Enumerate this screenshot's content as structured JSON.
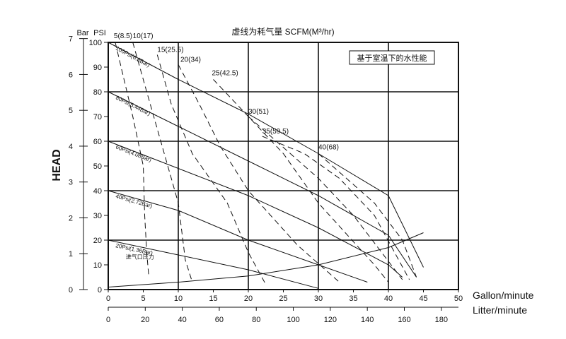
{
  "chart_data": {
    "type": "line",
    "title": "虚线为耗气量  SCFM(M³/hr)",
    "note": "基于室温下的水性能",
    "ylabel": "HEAD",
    "y_unit_bar": "Bar",
    "y_unit_psi": "PSI",
    "xlabel_gpm": "Gallon/minute",
    "xlabel_lpm": "Litter/minute",
    "xlim": [
      0,
      50
    ],
    "ylim_psi": [
      0,
      100
    ],
    "x_ticks_gpm": [
      "0",
      "5",
      "10",
      "15",
      "20",
      "25",
      "30",
      "35",
      "40",
      "45",
      "50"
    ],
    "x_ticks_lpm": [
      "0",
      "20",
      "40",
      "60",
      "80",
      "100",
      "120",
      "140",
      "160",
      "180"
    ],
    "y_ticks_psi": [
      "0",
      "10",
      "20",
      "30",
      "40",
      "50",
      "60",
      "70",
      "80",
      "90",
      "100"
    ],
    "y_ticks_bar": [
      "0",
      "1",
      "2",
      "3",
      "4",
      "5",
      "6",
      "7"
    ],
    "air_pressure_curves": [
      {
        "label": "100Psi(6.8Bar)",
        "points": [
          [
            0,
            100
          ],
          [
            10,
            85
          ],
          [
            20,
            71
          ],
          [
            30,
            55
          ],
          [
            40,
            38
          ],
          [
            45,
            9
          ]
        ]
      },
      {
        "label": "80Psi(5.44Bar)",
        "points": [
          [
            0,
            80
          ],
          [
            10,
            66
          ],
          [
            20,
            52
          ],
          [
            30,
            38
          ],
          [
            40,
            22
          ],
          [
            44,
            5
          ]
        ]
      },
      {
        "label": "60Psi(4.08Bar)",
        "points": [
          [
            0,
            60
          ],
          [
            10,
            49
          ],
          [
            20,
            38
          ],
          [
            30,
            25
          ],
          [
            40,
            10
          ],
          [
            42,
            5
          ]
        ]
      },
      {
        "label": "40Psi(2.72Bar)",
        "points": [
          [
            0,
            40
          ],
          [
            10,
            32
          ],
          [
            20,
            20
          ],
          [
            30,
            10
          ],
          [
            37,
            3
          ]
        ]
      },
      {
        "label": "20Psi(1.36Bar)",
        "points": [
          [
            0,
            20
          ],
          [
            10,
            14
          ],
          [
            20,
            8
          ],
          [
            30,
            0.5
          ]
        ]
      }
    ],
    "npsh_curve_label": "进气口压力",
    "npsh_curve": [
      [
        0,
        1
      ],
      [
        10,
        3
      ],
      [
        20,
        5.5
      ],
      [
        30,
        10
      ],
      [
        40,
        17
      ],
      [
        45,
        23
      ]
    ],
    "air_consumption_curves": [
      {
        "label": "5(8.5)",
        "points": [
          [
            1,
            100
          ],
          [
            3.5,
            70
          ],
          [
            5,
            50
          ],
          [
            5.2,
            30
          ],
          [
            5.5,
            15
          ],
          [
            5.8,
            5
          ]
        ]
      },
      {
        "label": "10(17)",
        "points": [
          [
            3.5,
            100
          ],
          [
            5.5,
            80
          ],
          [
            8,
            55
          ],
          [
            10,
            35
          ],
          [
            11,
            12
          ],
          [
            12,
            3
          ]
        ]
      },
      {
        "label": "15(25.5)",
        "points": [
          [
            7,
            95
          ],
          [
            9,
            75
          ],
          [
            12,
            55
          ],
          [
            17,
            35
          ],
          [
            20,
            15
          ],
          [
            22.5,
            2
          ]
        ]
      },
      {
        "label": "20(34)",
        "points": [
          [
            10,
            91
          ],
          [
            13,
            75
          ],
          [
            16,
            58
          ],
          [
            20,
            40
          ],
          [
            27,
            18
          ],
          [
            33,
            3
          ]
        ]
      },
      {
        "label": "25(42.5)",
        "points": [
          [
            15,
            85
          ],
          [
            20,
            70
          ],
          [
            25,
            55
          ],
          [
            30,
            35
          ],
          [
            38,
            10
          ],
          [
            40,
            3
          ]
        ]
      },
      {
        "label": "30(51)",
        "points": [
          [
            20,
            70
          ],
          [
            24,
            60
          ],
          [
            30,
            45
          ],
          [
            35,
            30
          ],
          [
            42,
            4
          ]
        ]
      },
      {
        "label": "35(59.5)",
        "points": [
          [
            22,
            62
          ],
          [
            28,
            55
          ],
          [
            33,
            45
          ],
          [
            38,
            30
          ],
          [
            43,
            4
          ]
        ]
      },
      {
        "label": "40(68)",
        "points": [
          [
            30,
            55
          ],
          [
            34,
            45
          ],
          [
            38,
            35
          ],
          [
            42,
            20
          ],
          [
            44,
            5
          ]
        ]
      }
    ]
  }
}
